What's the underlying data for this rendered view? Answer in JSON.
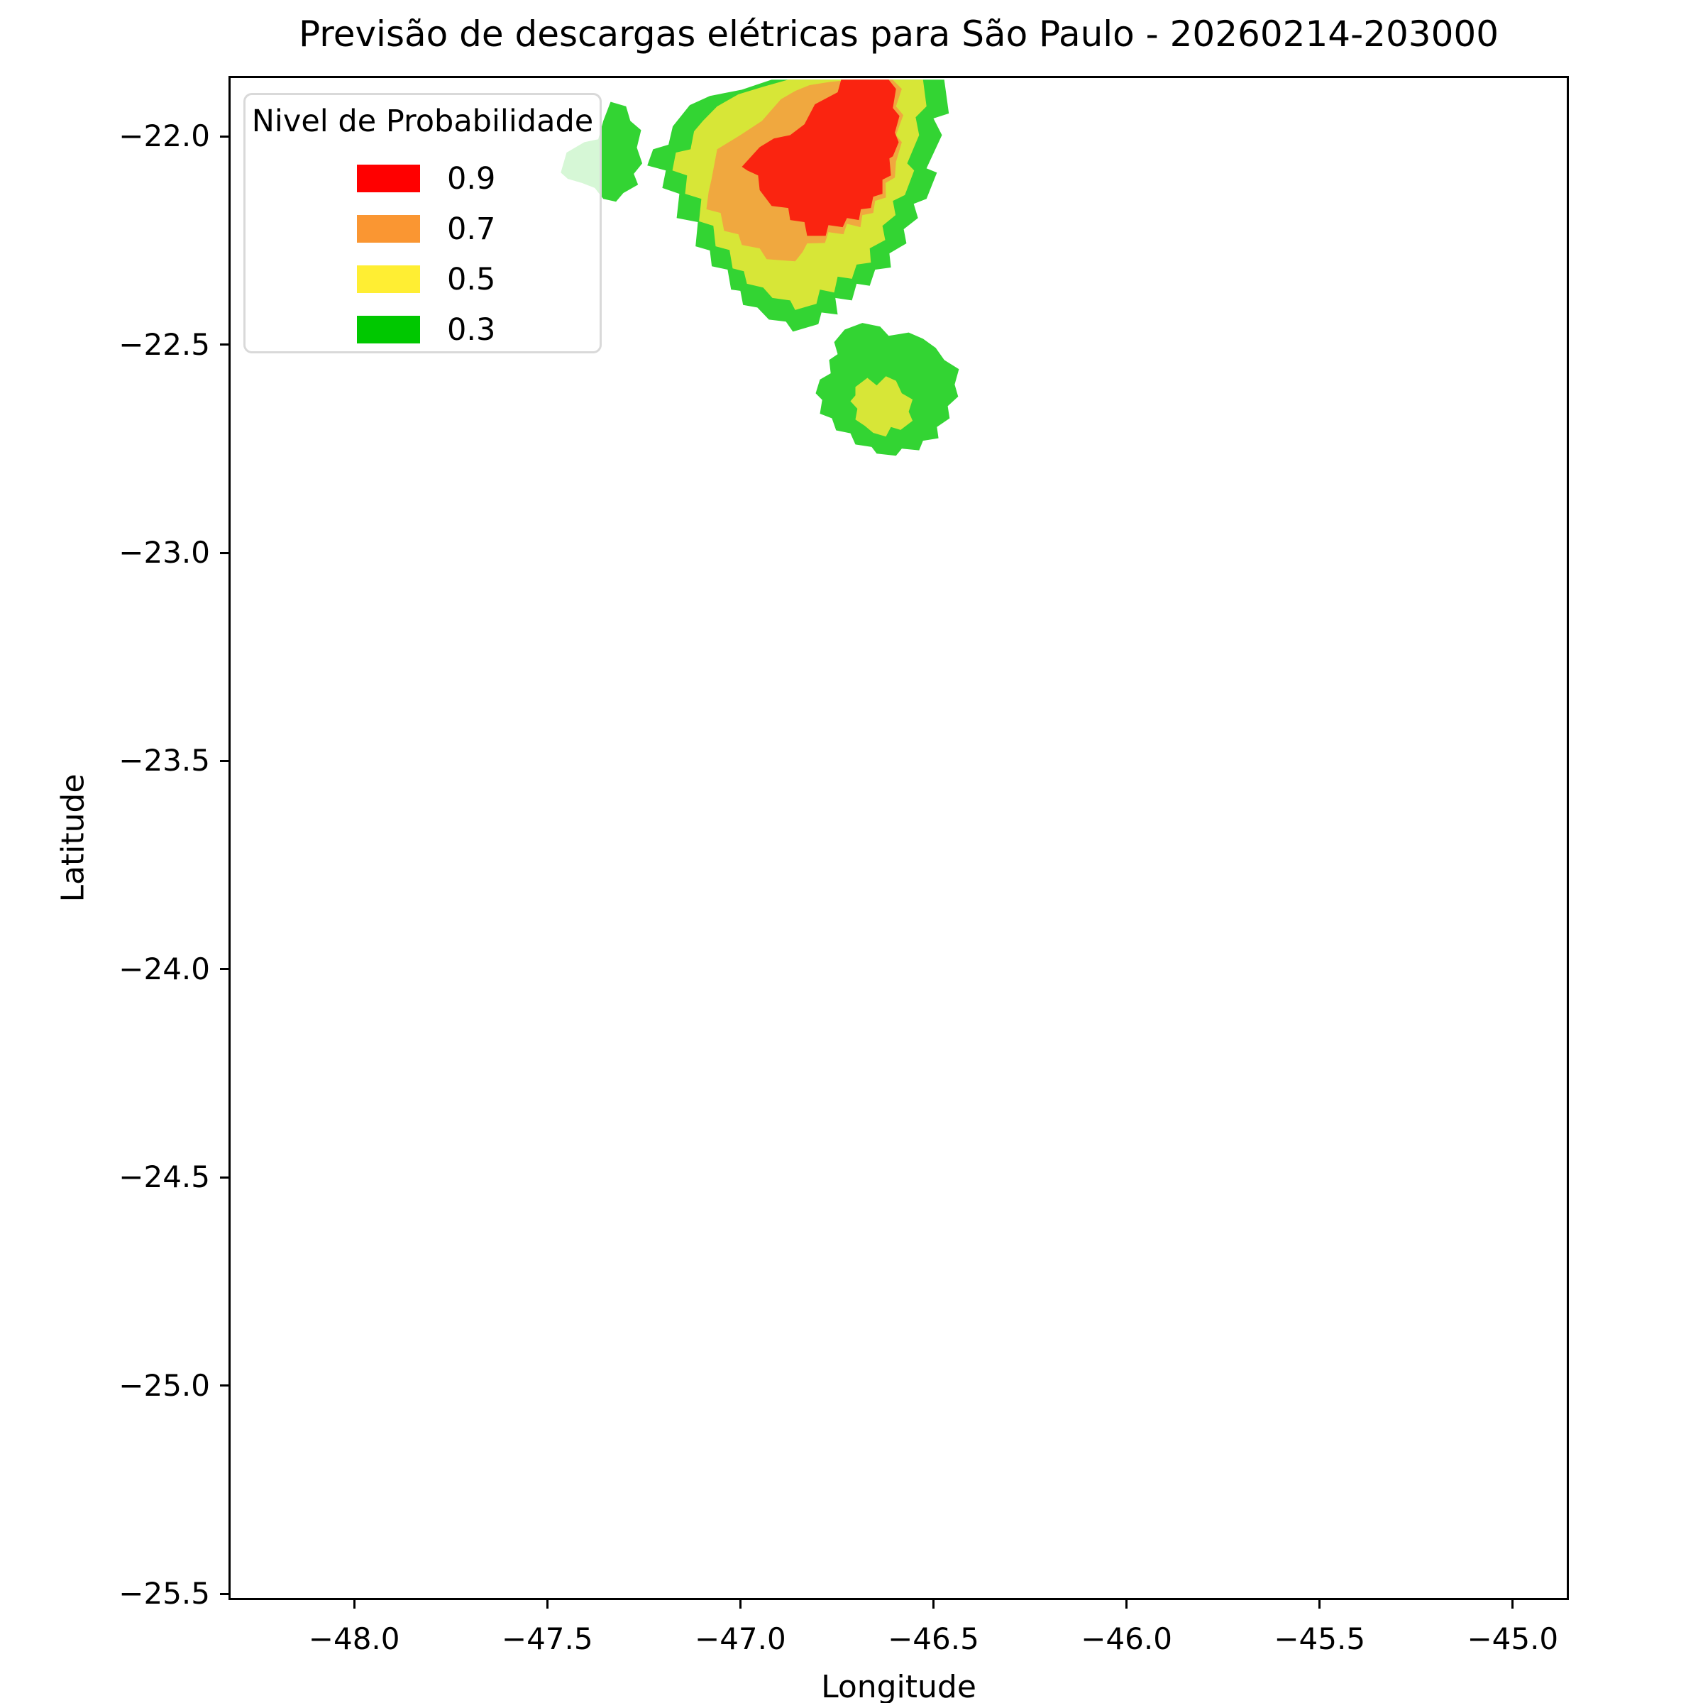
{
  "title": "Previsão de descargas elétricas para São Paulo - 20260214-203000",
  "legend": {
    "title": "Nivel de Probabilidade",
    "items": [
      {
        "label": "0.9",
        "color": "#ff0000"
      },
      {
        "label": "0.7",
        "color": "#fa9632"
      },
      {
        "label": "0.5",
        "color": "#ffee33"
      },
      {
        "label": "0.3",
        "color": "#00c800"
      }
    ]
  },
  "chart_data": {
    "type": "contour-map",
    "title": "Previsão de descargas elétricas para São Paulo - 20260214-203000",
    "xlabel": "Longitude",
    "ylabel": "Latitude",
    "xlim": [
      -48.32,
      -44.86
    ],
    "ylim": [
      -25.51,
      -21.86
    ],
    "grid": false,
    "legend_position": "upper left",
    "xticks": {
      "values": [
        -48.0,
        -47.5,
        -47.0,
        -46.5,
        -46.0,
        -45.5,
        -45.0
      ],
      "labels": [
        "−48.0",
        "−47.5",
        "−47.0",
        "−46.5",
        "−46.0",
        "−45.5",
        "−45.0"
      ]
    },
    "yticks": {
      "values": [
        -22.0,
        -22.5,
        -23.0,
        -23.5,
        -24.0,
        -24.5,
        -25.0,
        -25.5
      ],
      "labels": [
        "−22.0",
        "−22.5",
        "−23.0",
        "−23.5",
        "−24.0",
        "−24.5",
        "−25.0",
        "−25.5"
      ]
    },
    "levels": [
      0.3,
      0.5,
      0.7,
      0.9
    ],
    "level_colors": {
      "0.3": "#33d433",
      "0.5": "#d7e637",
      "0.7": "#f0a83f",
      "0.9": "#fa2410"
    },
    "regions": [
      {
        "name": "west-islet-green",
        "level": 0.3,
        "color": "#33d433",
        "points": [
          [
            -47.465,
            -22.087
          ],
          [
            -47.45,
            -22.039
          ],
          [
            -47.404,
            -22.014
          ],
          [
            -47.368,
            -22.007
          ],
          [
            -47.355,
            -21.963
          ],
          [
            -47.336,
            -21.917
          ],
          [
            -47.296,
            -21.928
          ],
          [
            -47.285,
            -21.963
          ],
          [
            -47.257,
            -21.985
          ],
          [
            -47.268,
            -22.027
          ],
          [
            -47.254,
            -22.065
          ],
          [
            -47.276,
            -22.09
          ],
          [
            -47.265,
            -22.116
          ],
          [
            -47.303,
            -22.136
          ],
          [
            -47.322,
            -22.157
          ],
          [
            -47.355,
            -22.15
          ],
          [
            -47.377,
            -22.124
          ],
          [
            -47.41,
            -22.112
          ],
          [
            -47.447,
            -22.102
          ]
        ]
      },
      {
        "name": "main-cell-green",
        "level": 0.3,
        "color": "#33d433",
        "points": [
          [
            -47.131,
            -21.925
          ],
          [
            -47.079,
            -21.903
          ],
          [
            -46.996,
            -21.888
          ],
          [
            -46.919,
            -21.864
          ],
          [
            -46.472,
            -21.864
          ],
          [
            -46.46,
            -21.945
          ],
          [
            -46.5,
            -21.957
          ],
          [
            -46.478,
            -21.997
          ],
          [
            -46.518,
            -22.077
          ],
          [
            -46.491,
            -22.087
          ],
          [
            -46.518,
            -22.15
          ],
          [
            -46.551,
            -22.162
          ],
          [
            -46.54,
            -22.196
          ],
          [
            -46.577,
            -22.223
          ],
          [
            -46.57,
            -22.257
          ],
          [
            -46.614,
            -22.281
          ],
          [
            -46.61,
            -22.315
          ],
          [
            -46.651,
            -22.32
          ],
          [
            -46.665,
            -22.359
          ],
          [
            -46.699,
            -22.354
          ],
          [
            -46.711,
            -22.394
          ],
          [
            -46.754,
            -22.388
          ],
          [
            -46.748,
            -22.428
          ],
          [
            -46.79,
            -22.423
          ],
          [
            -46.798,
            -22.451
          ],
          [
            -46.864,
            -22.469
          ],
          [
            -46.882,
            -22.445
          ],
          [
            -46.926,
            -22.44
          ],
          [
            -46.956,
            -22.411
          ],
          [
            -46.993,
            -22.405
          ],
          [
            -47.0,
            -22.371
          ],
          [
            -47.024,
            -22.368
          ],
          [
            -47.033,
            -22.32
          ],
          [
            -47.074,
            -22.312
          ],
          [
            -47.079,
            -22.274
          ],
          [
            -47.116,
            -22.264
          ],
          [
            -47.11,
            -22.206
          ],
          [
            -47.165,
            -22.196
          ],
          [
            -47.158,
            -22.138
          ],
          [
            -47.202,
            -22.124
          ],
          [
            -47.193,
            -22.082
          ],
          [
            -47.241,
            -22.07
          ],
          [
            -47.226,
            -22.031
          ],
          [
            -47.186,
            -22.02
          ],
          [
            -47.175,
            -21.976
          ]
        ]
      },
      {
        "name": "main-cell-yellow",
        "level": 0.5,
        "color": "#d7e637",
        "points": [
          [
            -47.097,
            -21.963
          ],
          [
            -47.06,
            -21.928
          ],
          [
            -47.005,
            -21.899
          ],
          [
            -46.941,
            -21.881
          ],
          [
            -46.876,
            -21.864
          ],
          [
            -46.527,
            -21.864
          ],
          [
            -46.518,
            -21.928
          ],
          [
            -46.546,
            -21.954
          ],
          [
            -46.537,
            -21.997
          ],
          [
            -46.568,
            -22.065
          ],
          [
            -46.55,
            -22.082
          ],
          [
            -46.574,
            -22.141
          ],
          [
            -46.605,
            -22.155
          ],
          [
            -46.598,
            -22.189
          ],
          [
            -46.632,
            -22.215
          ],
          [
            -46.625,
            -22.249
          ],
          [
            -46.665,
            -22.269
          ],
          [
            -46.662,
            -22.303
          ],
          [
            -46.699,
            -22.308
          ],
          [
            -46.711,
            -22.342
          ],
          [
            -46.748,
            -22.337
          ],
          [
            -46.757,
            -22.375
          ],
          [
            -46.794,
            -22.368
          ],
          [
            -46.803,
            -22.402
          ],
          [
            -46.858,
            -22.417
          ],
          [
            -46.871,
            -22.394
          ],
          [
            -46.917,
            -22.388
          ],
          [
            -46.941,
            -22.363
          ],
          [
            -46.983,
            -22.354
          ],
          [
            -46.991,
            -22.324
          ],
          [
            -47.02,
            -22.317
          ],
          [
            -47.028,
            -22.273
          ],
          [
            -47.064,
            -22.264
          ],
          [
            -47.07,
            -22.215
          ],
          [
            -47.107,
            -22.204
          ],
          [
            -47.101,
            -22.15
          ],
          [
            -47.143,
            -22.138
          ],
          [
            -47.138,
            -22.094
          ],
          [
            -47.176,
            -22.082
          ],
          [
            -47.167,
            -22.039
          ],
          [
            -47.129,
            -22.031
          ],
          [
            -47.12,
            -21.988
          ]
        ]
      },
      {
        "name": "main-cell-orange",
        "level": 0.7,
        "color": "#f0a83f",
        "points": [
          [
            -47.075,
            -22.104
          ],
          [
            -47.06,
            -22.031
          ],
          [
            -47.0,
            -21.997
          ],
          [
            -46.944,
            -21.963
          ],
          [
            -46.895,
            -21.911
          ],
          [
            -46.858,
            -21.891
          ],
          [
            -46.821,
            -21.877
          ],
          [
            -46.766,
            -21.869
          ],
          [
            -46.705,
            -21.864
          ],
          [
            -46.606,
            -21.864
          ],
          [
            -46.582,
            -21.886
          ],
          [
            -46.597,
            -21.928
          ],
          [
            -46.578,
            -21.949
          ],
          [
            -46.597,
            -21.997
          ],
          [
            -46.582,
            -22.014
          ],
          [
            -46.597,
            -22.061
          ],
          [
            -46.6,
            -22.099
          ],
          [
            -46.624,
            -22.112
          ],
          [
            -46.623,
            -22.147
          ],
          [
            -46.651,
            -22.155
          ],
          [
            -46.656,
            -22.184
          ],
          [
            -46.684,
            -22.189
          ],
          [
            -46.689,
            -22.218
          ],
          [
            -46.724,
            -22.21
          ],
          [
            -46.733,
            -22.235
          ],
          [
            -46.772,
            -22.23
          ],
          [
            -46.781,
            -22.256
          ],
          [
            -46.827,
            -22.257
          ],
          [
            -46.839,
            -22.278
          ],
          [
            -46.858,
            -22.3
          ],
          [
            -46.932,
            -22.295
          ],
          [
            -46.95,
            -22.269
          ],
          [
            -46.996,
            -22.261
          ],
          [
            -47.005,
            -22.235
          ],
          [
            -47.042,
            -22.227
          ],
          [
            -47.051,
            -22.184
          ],
          [
            -47.088,
            -22.175
          ],
          [
            -47.082,
            -22.133
          ]
        ]
      },
      {
        "name": "main-cell-red",
        "level": 0.9,
        "color": "#fa2410",
        "points": [
          [
            -46.807,
            -21.923
          ],
          [
            -46.748,
            -21.894
          ],
          [
            -46.739,
            -21.864
          ],
          [
            -46.616,
            -21.864
          ],
          [
            -46.597,
            -21.886
          ],
          [
            -46.605,
            -21.932
          ],
          [
            -46.588,
            -21.951
          ],
          [
            -46.6,
            -21.991
          ],
          [
            -46.59,
            -22.014
          ],
          [
            -46.605,
            -22.048
          ],
          [
            -46.614,
            -22.053
          ],
          [
            -46.61,
            -22.094
          ],
          [
            -46.632,
            -22.104
          ],
          [
            -46.632,
            -22.138
          ],
          [
            -46.656,
            -22.145
          ],
          [
            -46.662,
            -22.172
          ],
          [
            -46.688,
            -22.175
          ],
          [
            -46.693,
            -22.201
          ],
          [
            -46.724,
            -22.196
          ],
          [
            -46.735,
            -22.218
          ],
          [
            -46.772,
            -22.213
          ],
          [
            -46.779,
            -22.239
          ],
          [
            -46.827,
            -22.239
          ],
          [
            -46.834,
            -22.206
          ],
          [
            -46.871,
            -22.201
          ],
          [
            -46.876,
            -22.172
          ],
          [
            -46.919,
            -22.167
          ],
          [
            -46.95,
            -22.129
          ],
          [
            -46.954,
            -22.094
          ],
          [
            -46.982,
            -22.082
          ],
          [
            -46.996,
            -22.073
          ],
          [
            -46.95,
            -22.026
          ],
          [
            -46.913,
            -22.005
          ],
          [
            -46.871,
            -21.997
          ],
          [
            -46.834,
            -21.971
          ]
        ]
      },
      {
        "name": "south-cell-green",
        "level": 0.3,
        "color": "#33d433",
        "points": [
          [
            -46.73,
            -22.464
          ],
          [
            -46.684,
            -22.448
          ],
          [
            -46.638,
            -22.457
          ],
          [
            -46.616,
            -22.479
          ],
          [
            -46.564,
            -22.471
          ],
          [
            -46.527,
            -22.486
          ],
          [
            -46.494,
            -22.508
          ],
          [
            -46.472,
            -22.537
          ],
          [
            -46.434,
            -22.559
          ],
          [
            -46.445,
            -22.596
          ],
          [
            -46.436,
            -22.625
          ],
          [
            -46.463,
            -22.648
          ],
          [
            -46.458,
            -22.677
          ],
          [
            -46.491,
            -22.698
          ],
          [
            -46.487,
            -22.725
          ],
          [
            -46.527,
            -22.731
          ],
          [
            -46.537,
            -22.754
          ],
          [
            -46.582,
            -22.75
          ],
          [
            -46.597,
            -22.767
          ],
          [
            -46.647,
            -22.762
          ],
          [
            -46.66,
            -22.746
          ],
          [
            -46.702,
            -22.74
          ],
          [
            -46.715,
            -22.713
          ],
          [
            -46.752,
            -22.706
          ],
          [
            -46.763,
            -22.677
          ],
          [
            -46.794,
            -22.666
          ],
          [
            -46.788,
            -22.633
          ],
          [
            -46.805,
            -22.617
          ],
          [
            -46.794,
            -22.584
          ],
          [
            -46.766,
            -22.569
          ],
          [
            -46.77,
            -22.537
          ],
          [
            -46.748,
            -22.523
          ],
          [
            -46.757,
            -22.494
          ]
        ]
      },
      {
        "name": "south-cell-yellow",
        "level": 0.5,
        "color": "#d7e637",
        "points": [
          [
            -46.702,
            -22.602
          ],
          [
            -46.671,
            -22.58
          ],
          [
            -46.647,
            -22.598
          ],
          [
            -46.623,
            -22.576
          ],
          [
            -46.597,
            -22.587
          ],
          [
            -46.582,
            -22.617
          ],
          [
            -46.554,
            -22.632
          ],
          [
            -46.564,
            -22.661
          ],
          [
            -46.554,
            -22.683
          ],
          [
            -46.585,
            -22.705
          ],
          [
            -46.61,
            -22.698
          ],
          [
            -46.623,
            -22.721
          ],
          [
            -46.656,
            -22.712
          ],
          [
            -46.678,
            -22.695
          ],
          [
            -46.702,
            -22.68
          ],
          [
            -46.697,
            -22.654
          ],
          [
            -46.715,
            -22.636
          ],
          [
            -46.702,
            -22.622
          ]
        ]
      }
    ]
  }
}
